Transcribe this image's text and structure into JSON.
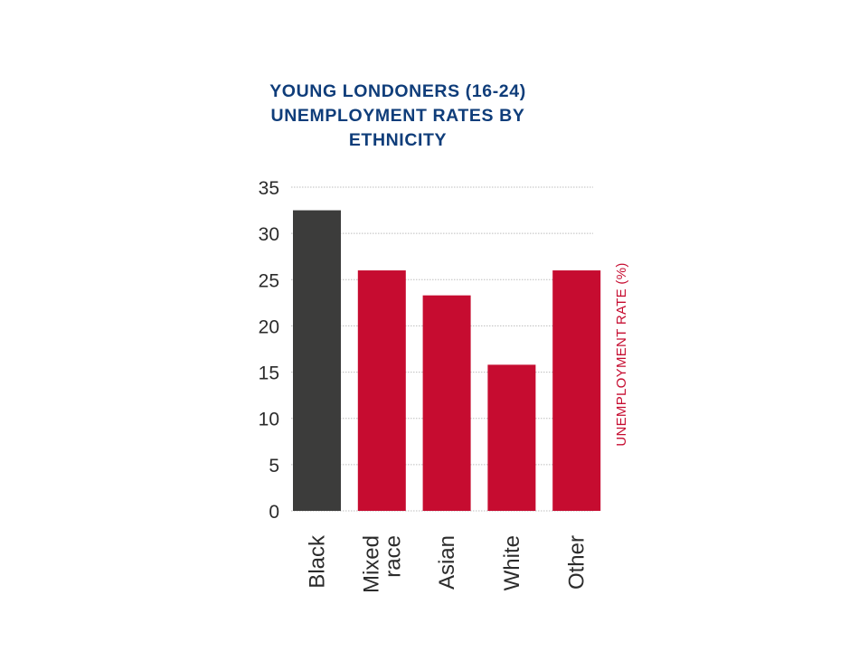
{
  "chart_data": {
    "type": "bar",
    "title": [
      "YOUNG LONDONERS (16-24)",
      "UNEMPLOYMENT RATES BY",
      "ETHNICITY"
    ],
    "categories": [
      [
        "Black"
      ],
      [
        "Mixed",
        "race"
      ],
      [
        "Asian"
      ],
      [
        "White"
      ],
      [
        "Other"
      ]
    ],
    "values": [
      32.5,
      26,
      23.3,
      15.8,
      26
    ],
    "bar_colors": [
      "#3c3c3b",
      "#c60c30",
      "#c60c30",
      "#c60c30",
      "#c60c30"
    ],
    "ylabel": "UNEMPLOYMENT RATE (%)",
    "ylabel_color": "#c60c30",
    "ylim": [
      0,
      35
    ],
    "yticks": [
      0,
      5,
      10,
      15,
      20,
      25,
      30,
      35
    ],
    "grid": true,
    "title_color": "#0f3d7a"
  }
}
